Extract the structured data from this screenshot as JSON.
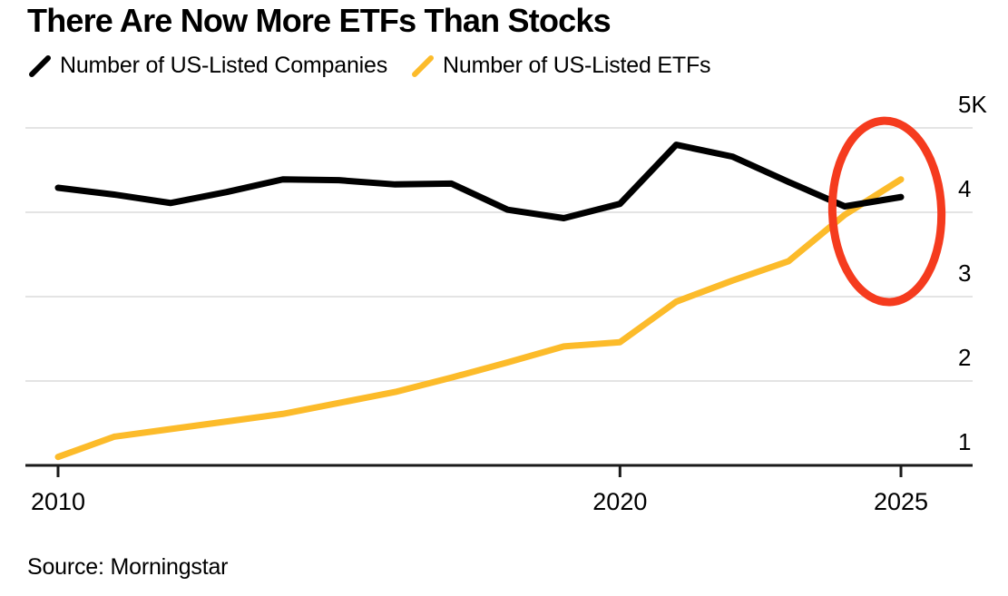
{
  "header": {
    "title": "There Are Now More ETFs Than Stocks"
  },
  "footer": {
    "source": "Source: Morningstar"
  },
  "colors": {
    "background": "#ffffff",
    "text": "#000000",
    "gridline": "#e4e4e4",
    "axis": "#1a1a1a",
    "companies_line": "#000000",
    "etf_line": "#fcbb2a",
    "annotation_red": "#f53b1e"
  },
  "legend": {
    "companies_icon": "slash-icon",
    "etfs_icon": "slash-icon"
  },
  "chart_data": {
    "type": "line",
    "title": "There Are Now More ETFs Than Stocks",
    "xlabel": "",
    "ylabel": "",
    "x": [
      2010,
      2011,
      2012,
      2013,
      2014,
      2015,
      2016,
      2017,
      2018,
      2019,
      2020,
      2021,
      2022,
      2023,
      2024,
      2025
    ],
    "series": [
      {
        "name": "Number of US-Listed Companies",
        "color": "#000000",
        "values": [
          4290,
          4210,
          4110,
          4240,
          4390,
          4380,
          4330,
          4340,
          4030,
          3930,
          4100,
          4800,
          4660,
          4360,
          4070,
          4180
        ]
      },
      {
        "name": "Number of US-Listed ETFs",
        "color": "#fcbb2a",
        "values": [
          1100,
          1340,
          1430,
          1520,
          1610,
          1740,
          1870,
          2040,
          2220,
          2410,
          2460,
          2940,
          3190,
          3420,
          3970,
          4390
        ]
      }
    ],
    "ylim": [
      1000,
      5000
    ],
    "yticks": [
      {
        "value": 5000,
        "label": "5K"
      },
      {
        "value": 4000,
        "label": "4"
      },
      {
        "value": 3000,
        "label": "3"
      },
      {
        "value": 2000,
        "label": "2"
      },
      {
        "value": 1000,
        "label": "1"
      }
    ],
    "xticks": [
      {
        "value": 2010,
        "label": "2010"
      },
      {
        "value": 2020,
        "label": "2020"
      },
      {
        "value": 2025,
        "label": "2025"
      }
    ],
    "grid": "horizontal",
    "legend_position": "top",
    "annotation": {
      "type": "ellipse",
      "purpose": "highlights 2024-2025 crossover where ETFs overtake stocks",
      "color": "#f53b1e",
      "center": {
        "x": 2024.75,
        "y": 4010
      },
      "radius": {
        "x_years": 0.97,
        "y_units": 1075
      }
    }
  }
}
